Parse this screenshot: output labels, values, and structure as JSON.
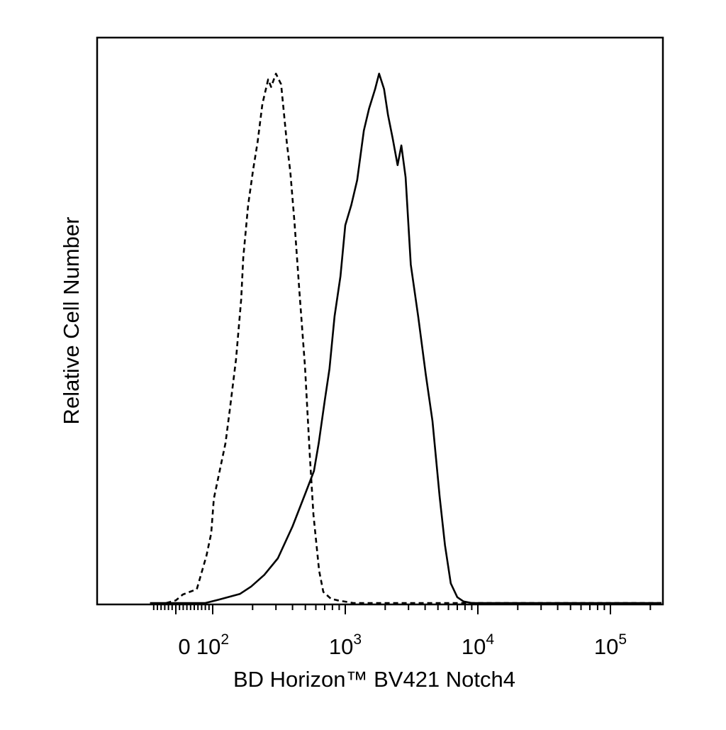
{
  "chart_data": {
    "type": "line",
    "title": "",
    "xlabel": "BD Horizon™ BV421 Notch4",
    "ylabel": "Relative Cell Number",
    "x_scale": "biexponential (log above ~10^2, linear near 0)",
    "xlim": [
      -70,
      250000
    ],
    "ylim": [
      0,
      100
    ],
    "grid": false,
    "legend": "none",
    "x_ticks": [
      {
        "value": 0,
        "label": "0",
        "exp": ""
      },
      {
        "value": 100,
        "label": "10",
        "exp": "2"
      },
      {
        "value": 1000,
        "label": "10",
        "exp": "3"
      },
      {
        "value": 10000,
        "label": "10",
        "exp": "4"
      },
      {
        "value": 100000,
        "label": "10",
        "exp": "5"
      }
    ],
    "series": [
      {
        "style": "dashed",
        "points": [
          [
            -26,
            0
          ],
          [
            0,
            0.5
          ],
          [
            19,
            1.6
          ],
          [
            57,
            2.6
          ],
          [
            83,
            8.9
          ],
          [
            96,
            13.1
          ],
          [
            102,
            19.6
          ],
          [
            125,
            30.1
          ],
          [
            135,
            36.6
          ],
          [
            150,
            45.8
          ],
          [
            164,
            57.1
          ],
          [
            170,
            64.9
          ],
          [
            185,
            74.8
          ],
          [
            202,
            81.5
          ],
          [
            218,
            86.6
          ],
          [
            237,
            93.8
          ],
          [
            262,
            98.4
          ],
          [
            276,
            97.0
          ],
          [
            300,
            99.5
          ],
          [
            328,
            97.5
          ],
          [
            362,
            86.6
          ],
          [
            385,
            81.0
          ],
          [
            414,
            71.5
          ],
          [
            452,
            58.2
          ],
          [
            497,
            44.4
          ],
          [
            540,
            27.7
          ],
          [
            575,
            16.6
          ],
          [
            635,
            6.1
          ],
          [
            683,
            2.1
          ],
          [
            780,
            0.8
          ],
          [
            880,
            0.5
          ],
          [
            1150,
            0
          ],
          [
            250000,
            0
          ]
        ]
      },
      {
        "style": "solid",
        "points": [
          [
            -70,
            0
          ],
          [
            80,
            0
          ],
          [
            110,
            0.6
          ],
          [
            160,
            1.7
          ],
          [
            195,
            3.1
          ],
          [
            245,
            5.3
          ],
          [
            310,
            8.4
          ],
          [
            400,
            14.4
          ],
          [
            500,
            20.6
          ],
          [
            580,
            24.8
          ],
          [
            630,
            30.0
          ],
          [
            700,
            38.0
          ],
          [
            760,
            44.0
          ],
          [
            830,
            53.9
          ],
          [
            920,
            61.4
          ],
          [
            1000,
            71.0
          ],
          [
            1110,
            74.8
          ],
          [
            1230,
            79.5
          ],
          [
            1380,
            88.8
          ],
          [
            1510,
            92.9
          ],
          [
            1680,
            96.6
          ],
          [
            1800,
            99.5
          ],
          [
            1960,
            96.6
          ],
          [
            2100,
            91.7
          ],
          [
            2280,
            87.3
          ],
          [
            2480,
            82.3
          ],
          [
            2650,
            86.0
          ],
          [
            2850,
            80.0
          ],
          [
            3120,
            63.6
          ],
          [
            3550,
            53.8
          ],
          [
            4050,
            42.9
          ],
          [
            4550,
            34.2
          ],
          [
            5150,
            20.0
          ],
          [
            5650,
            10.9
          ],
          [
            6250,
            3.7
          ],
          [
            7000,
            1.1
          ],
          [
            7800,
            0.3
          ],
          [
            9000,
            0
          ],
          [
            250000,
            0
          ]
        ]
      }
    ]
  }
}
